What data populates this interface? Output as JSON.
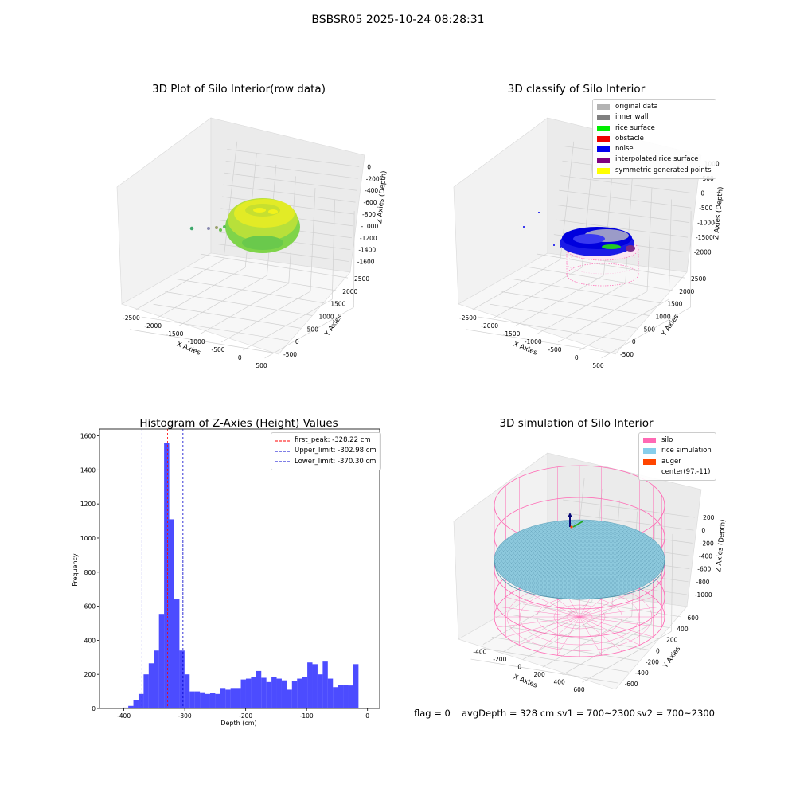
{
  "figure": {
    "suptitle": "BSBSR05 2025-10-24 08:28:31",
    "footer": {
      "flag": "flag = 0",
      "avg_depth": "avgDepth = 328 cm",
      "sv1": "sv1 = 700~2300",
      "sv2": "sv2 = 700~2300"
    }
  },
  "chart_data": [
    {
      "type": "scatter",
      "projection": "3d",
      "title": "3D Plot of Silo Interior(row data)",
      "xlabel": "X Axies",
      "ylabel": "Y Axies",
      "zlabel": "Z Axies (Depth)",
      "xticks": [
        -2500,
        -2000,
        -1500,
        -1000,
        -500,
        0,
        500
      ],
      "yticks": [
        -500,
        0,
        500,
        1000,
        1500,
        2000,
        2500
      ],
      "zticks": [
        -1600,
        -1400,
        -1200,
        -1000,
        -800,
        -600,
        -400,
        -200,
        0
      ],
      "xlim": [
        -2700,
        600
      ],
      "ylim": [
        -600,
        2600
      ],
      "zlim": [
        -1700,
        100
      ],
      "colormap": "green-to-yellow by depth",
      "grid": true
    },
    {
      "type": "scatter",
      "projection": "3d",
      "title": "3D classify of Silo Interior",
      "xlabel": "X Axies",
      "ylabel": "Y Axies",
      "zlabel": "Z Axies (Depth)",
      "xticks": [
        -2500,
        -2000,
        -1500,
        -1000,
        -500,
        0,
        500
      ],
      "yticks": [
        -500,
        0,
        500,
        1000,
        1500,
        2000,
        2500
      ],
      "zticks": [
        -2000,
        -1500,
        -1000,
        -500,
        0,
        500,
        1000
      ],
      "xlim": [
        -2700,
        600
      ],
      "ylim": [
        -600,
        2600
      ],
      "zlim": [
        -2200,
        1100
      ],
      "legend_position": "upper right",
      "legend": [
        {
          "label": "original data",
          "color": "#b3b3b3"
        },
        {
          "label": "inner wall",
          "color": "#808080"
        },
        {
          "label": "rice surface",
          "color": "#00ee00"
        },
        {
          "label": "obstacle",
          "color": "#ee0000"
        },
        {
          "label": "noise",
          "color": "#0000ee"
        },
        {
          "label": "interpolated rice surface",
          "color": "#800080"
        },
        {
          "label": "symmetric generated points",
          "color": "#ffff00"
        }
      ],
      "grid": true
    },
    {
      "type": "bar",
      "title": "Histogram of Z-Axies (Height) Values",
      "xlabel": "Depth (cm)",
      "ylabel": "Frequency",
      "xlim": [
        -440,
        20
      ],
      "ylim": [
        0,
        1640
      ],
      "xticks": [
        -400,
        -300,
        -200,
        -100,
        0
      ],
      "yticks": [
        0,
        200,
        400,
        600,
        800,
        1000,
        1200,
        1400,
        1600
      ],
      "bin_width": 8.4,
      "bin_start": -418,
      "values": [
        2,
        3,
        5,
        15,
        50,
        85,
        200,
        265,
        340,
        555,
        1560,
        1110,
        640,
        340,
        200,
        100,
        100,
        95,
        85,
        90,
        85,
        120,
        110,
        120,
        120,
        170,
        175,
        185,
        220,
        180,
        155,
        185,
        175,
        165,
        110,
        160,
        175,
        185,
        270,
        260,
        200,
        275,
        175,
        125,
        140,
        140,
        135,
        260
      ],
      "bar_color": "#0000ff",
      "vlines": [
        {
          "label": "first_peak: -328.22 cm",
          "x": -328.22,
          "color": "#ff0000"
        },
        {
          "label": "Upper_limit: -302.98 cm",
          "x": -302.98,
          "color": "#0000cc"
        },
        {
          "label": "Lower_limit: -370.30 cm",
          "x": -370.3,
          "color": "#0000cc"
        }
      ],
      "legend_position": "upper right"
    },
    {
      "type": "surface",
      "projection": "3d",
      "title": "3D simulation of Silo Interior",
      "xlabel": "X Axies",
      "ylabel": "Y Axies",
      "zlabel": "Z Axies (Depth)",
      "xticks": [
        -400,
        -200,
        0,
        200,
        400,
        600
      ],
      "yticks": [
        -600,
        -400,
        -200,
        0,
        200,
        400,
        600
      ],
      "zticks": [
        -1000,
        -800,
        -600,
        -400,
        -200,
        0,
        200
      ],
      "xlim": [
        -600,
        700
      ],
      "ylim": [
        -700,
        700
      ],
      "zlim": [
        -1100,
        300
      ],
      "legend_position": "upper right",
      "legend": [
        {
          "label": "silo",
          "color": "#ff69b4"
        },
        {
          "label": "rice simulation",
          "color": "#87ceeb"
        },
        {
          "label": "auger",
          "color": "#ff4500"
        },
        {
          "label": "center(97,-11)",
          "color": "#ffffff"
        }
      ],
      "grid": true
    }
  ]
}
